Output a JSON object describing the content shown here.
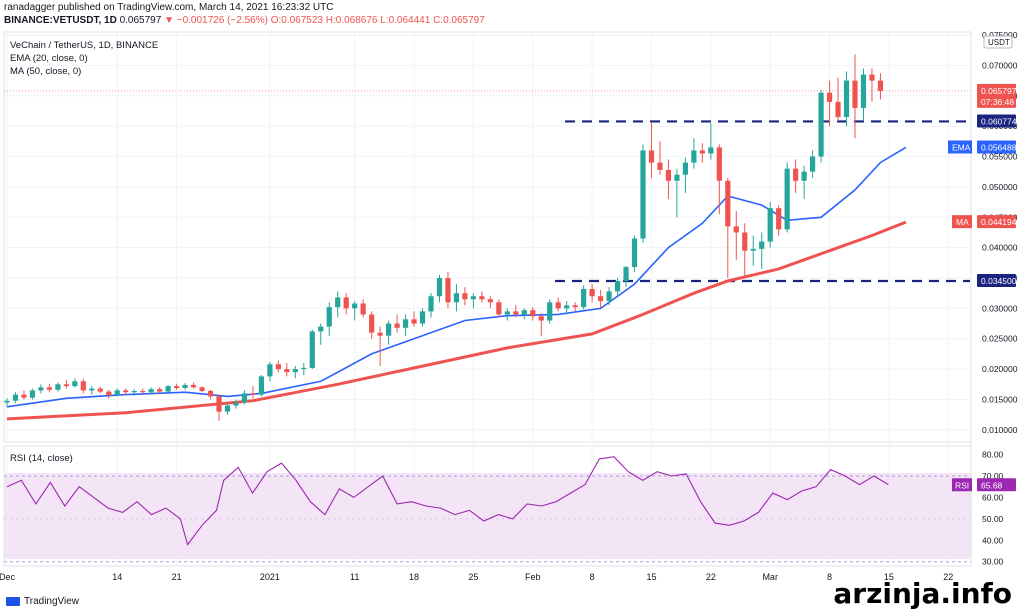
{
  "header": {
    "publisher_line": "ranadagger published on TradingView.com, March 14, 2021 16:23:32 UTC",
    "symbol": "BINANCE:VETUSDT, 1D",
    "last": "0.065797",
    "change": "▼ −0.001726 (−2.56%)",
    "ohlc": "O:0.067523 H:0.068676 L:0.064441 C:0.065797"
  },
  "legend": {
    "title": "VeChain / TetherUS, 1D, BINANCE",
    "ema": "EMA (20, close, 0)",
    "ma": "MA (50, close, 0)",
    "rsi": "RSI (14, close)"
  },
  "badges": {
    "currency": "USDT",
    "price": "0.065797",
    "countdown": "07:36:48",
    "resistance": "0.060774",
    "support": "0.034500",
    "ema_label": "EMA",
    "ema_value": "0.056488",
    "ma_label": "MA",
    "ma_value": "0.044194",
    "rsi_label": "RSI",
    "rsi_value": "65.68"
  },
  "footer": {
    "logo": "TradingView",
    "watermark": "arzinja.info"
  },
  "colors": {
    "up": "#26a69a",
    "down": "#ef5350",
    "ema": "#2962ff",
    "ma": "#ef5350",
    "rsi": "#9c27b0",
    "level": "#1a237e",
    "rsi_band": "#f3e5f5"
  },
  "chart_data": {
    "type": "candlestick",
    "price_axis": {
      "min": 0.008,
      "max": 0.0755,
      "ticks": [
        "0.075000",
        "0.070000",
        "0.065000",
        "0.060000",
        "0.055000",
        "0.050000",
        "0.045000",
        "0.040000",
        "0.035000",
        "0.030000",
        "0.025000",
        "0.020000",
        "0.015000",
        "0.010000"
      ]
    },
    "rsi_axis": {
      "min": 28,
      "max": 84,
      "ticks": [
        "80.00",
        "70.00",
        "60.00",
        "50.00",
        "40.00",
        "30.00"
      ]
    },
    "x_labels": [
      "Dec",
      "14",
      "21",
      "2021",
      "11",
      "18",
      "25",
      "Feb",
      "8",
      "15",
      "22",
      "Mar",
      "8",
      "15",
      "22"
    ],
    "x_label_days": [
      1,
      14,
      21,
      32,
      42,
      49,
      56,
      63,
      70,
      77,
      84,
      91,
      98,
      105,
      112
    ],
    "levels": {
      "resistance": 0.060774,
      "support": 0.0345
    },
    "candles": [
      [
        0.0145,
        0.0152,
        0.0138,
        0.0148
      ],
      [
        0.0148,
        0.0162,
        0.0144,
        0.0158
      ],
      [
        0.0158,
        0.0165,
        0.015,
        0.0153
      ],
      [
        0.0153,
        0.0168,
        0.015,
        0.0165
      ],
      [
        0.0165,
        0.0175,
        0.016,
        0.017
      ],
      [
        0.017,
        0.0176,
        0.0162,
        0.0166
      ],
      [
        0.0166,
        0.0178,
        0.0163,
        0.0175
      ],
      [
        0.0175,
        0.0182,
        0.0168,
        0.0172
      ],
      [
        0.0172,
        0.0185,
        0.017,
        0.018
      ],
      [
        0.018,
        0.0184,
        0.016,
        0.0165
      ],
      [
        0.0165,
        0.0172,
        0.0158,
        0.0168
      ],
      [
        0.0168,
        0.0171,
        0.016,
        0.0163
      ],
      [
        0.0163,
        0.0166,
        0.0152,
        0.0157
      ],
      [
        0.0157,
        0.0168,
        0.0155,
        0.0165
      ],
      [
        0.0165,
        0.0168,
        0.0158,
        0.0162
      ],
      [
        0.0162,
        0.0167,
        0.0156,
        0.0164
      ],
      [
        0.0164,
        0.0168,
        0.016,
        0.0162
      ],
      [
        0.0162,
        0.017,
        0.0158,
        0.0167
      ],
      [
        0.0167,
        0.017,
        0.016,
        0.0163
      ],
      [
        0.0163,
        0.0174,
        0.0161,
        0.0172
      ],
      [
        0.0172,
        0.0176,
        0.0166,
        0.0169
      ],
      [
        0.0169,
        0.0177,
        0.0166,
        0.0174
      ],
      [
        0.0174,
        0.0178,
        0.0168,
        0.017
      ],
      [
        0.017,
        0.0172,
        0.0162,
        0.0164
      ],
      [
        0.0164,
        0.0166,
        0.015,
        0.0155
      ],
      [
        0.0155,
        0.0158,
        0.0115,
        0.013
      ],
      [
        0.013,
        0.0145,
        0.0125,
        0.014
      ],
      [
        0.014,
        0.015,
        0.0135,
        0.0145
      ],
      [
        0.0145,
        0.0165,
        0.0142,
        0.016
      ],
      [
        0.016,
        0.0172,
        0.0152,
        0.0158
      ],
      [
        0.0158,
        0.019,
        0.0155,
        0.0188
      ],
      [
        0.0188,
        0.0212,
        0.018,
        0.0208
      ],
      [
        0.0208,
        0.0214,
        0.0195,
        0.02
      ],
      [
        0.02,
        0.021,
        0.0188,
        0.0195
      ],
      [
        0.0195,
        0.0205,
        0.0185,
        0.02
      ],
      [
        0.02,
        0.021,
        0.019,
        0.0202
      ],
      [
        0.0202,
        0.0265,
        0.02,
        0.0262
      ],
      [
        0.0262,
        0.0275,
        0.024,
        0.027
      ],
      [
        0.027,
        0.031,
        0.0255,
        0.0302
      ],
      [
        0.0302,
        0.0328,
        0.0285,
        0.0318
      ],
      [
        0.0318,
        0.0325,
        0.029,
        0.03
      ],
      [
        0.03,
        0.0312,
        0.028,
        0.0308
      ],
      [
        0.0308,
        0.0315,
        0.0285,
        0.029
      ],
      [
        0.029,
        0.0295,
        0.025,
        0.026
      ],
      [
        0.026,
        0.027,
        0.0205,
        0.0255
      ],
      [
        0.0255,
        0.028,
        0.024,
        0.0275
      ],
      [
        0.0275,
        0.029,
        0.026,
        0.0268
      ],
      [
        0.0268,
        0.029,
        0.0255,
        0.0282
      ],
      [
        0.0282,
        0.0295,
        0.027,
        0.0275
      ],
      [
        0.0275,
        0.03,
        0.027,
        0.0295
      ],
      [
        0.0295,
        0.0325,
        0.0285,
        0.032
      ],
      [
        0.032,
        0.0355,
        0.031,
        0.035
      ],
      [
        0.035,
        0.036,
        0.03,
        0.031
      ],
      [
        0.031,
        0.034,
        0.0295,
        0.0325
      ],
      [
        0.0325,
        0.0335,
        0.0305,
        0.0315
      ],
      [
        0.0315,
        0.0325,
        0.03,
        0.032
      ],
      [
        0.032,
        0.0328,
        0.031,
        0.0315
      ],
      [
        0.0315,
        0.032,
        0.03,
        0.031
      ],
      [
        0.031,
        0.0315,
        0.0285,
        0.029
      ],
      [
        0.029,
        0.03,
        0.028,
        0.0295
      ],
      [
        0.0295,
        0.0305,
        0.0285,
        0.029
      ],
      [
        0.029,
        0.03,
        0.0282,
        0.0297
      ],
      [
        0.0297,
        0.0302,
        0.028,
        0.0287
      ],
      [
        0.0287,
        0.0292,
        0.0255,
        0.028
      ],
      [
        0.028,
        0.0315,
        0.0275,
        0.031
      ],
      [
        0.031,
        0.0318,
        0.0295,
        0.03
      ],
      [
        0.03,
        0.0312,
        0.029,
        0.0305
      ],
      [
        0.0305,
        0.031,
        0.0295,
        0.0302
      ],
      [
        0.0302,
        0.0338,
        0.0298,
        0.0332
      ],
      [
        0.0332,
        0.034,
        0.031,
        0.032
      ],
      [
        0.032,
        0.033,
        0.03,
        0.0312
      ],
      [
        0.0312,
        0.0335,
        0.0305,
        0.0328
      ],
      [
        0.0328,
        0.035,
        0.032,
        0.0345
      ],
      [
        0.0345,
        0.037,
        0.0335,
        0.0368
      ],
      [
        0.0368,
        0.042,
        0.036,
        0.0415
      ],
      [
        0.0415,
        0.057,
        0.0408,
        0.056
      ],
      [
        0.056,
        0.0605,
        0.0515,
        0.054
      ],
      [
        0.054,
        0.0575,
        0.052,
        0.0528
      ],
      [
        0.0528,
        0.0545,
        0.048,
        0.051
      ],
      [
        0.051,
        0.053,
        0.045,
        0.052
      ],
      [
        0.052,
        0.0548,
        0.049,
        0.054
      ],
      [
        0.054,
        0.058,
        0.053,
        0.056
      ],
      [
        0.056,
        0.0572,
        0.054,
        0.0555
      ],
      [
        0.0555,
        0.0605,
        0.0545,
        0.0565
      ],
      [
        0.0565,
        0.057,
        0.0455,
        0.051
      ],
      [
        0.051,
        0.0515,
        0.035,
        0.0435
      ],
      [
        0.0435,
        0.046,
        0.038,
        0.0425
      ],
      [
        0.0425,
        0.044,
        0.035,
        0.0395
      ],
      [
        0.0395,
        0.042,
        0.037,
        0.0398
      ],
      [
        0.0398,
        0.0425,
        0.0365,
        0.041
      ],
      [
        0.041,
        0.0475,
        0.04,
        0.0465
      ],
      [
        0.0465,
        0.047,
        0.042,
        0.043
      ],
      [
        0.043,
        0.054,
        0.0425,
        0.053
      ],
      [
        0.053,
        0.0545,
        0.049,
        0.051
      ],
      [
        0.051,
        0.0535,
        0.048,
        0.0525
      ],
      [
        0.0525,
        0.056,
        0.0515,
        0.055
      ],
      [
        0.055,
        0.066,
        0.054,
        0.0655
      ],
      [
        0.0655,
        0.0675,
        0.06,
        0.064
      ],
      [
        0.064,
        0.068,
        0.0608,
        0.0615
      ],
      [
        0.0615,
        0.069,
        0.06,
        0.0675
      ],
      [
        0.0675,
        0.0718,
        0.058,
        0.063
      ],
      [
        0.063,
        0.0695,
        0.061,
        0.0685
      ],
      [
        0.0685,
        0.0695,
        0.064,
        0.0675
      ],
      [
        0.0675,
        0.0687,
        0.0644,
        0.0658
      ]
    ],
    "ema": [
      [
        1,
        0.0138
      ],
      [
        8,
        0.0152
      ],
      [
        15,
        0.0158
      ],
      [
        22,
        0.0162
      ],
      [
        27,
        0.0155
      ],
      [
        31,
        0.016
      ],
      [
        38,
        0.018
      ],
      [
        44,
        0.0225
      ],
      [
        49,
        0.025
      ],
      [
        55,
        0.028
      ],
      [
        60,
        0.0288
      ],
      [
        66,
        0.029
      ],
      [
        71,
        0.03
      ],
      [
        75,
        0.034
      ],
      [
        79,
        0.04
      ],
      [
        83,
        0.044
      ],
      [
        86,
        0.0485
      ],
      [
        90,
        0.047
      ],
      [
        93,
        0.0445
      ],
      [
        97,
        0.045
      ],
      [
        101,
        0.0495
      ],
      [
        104,
        0.054
      ],
      [
        107,
        0.0565
      ]
    ],
    "ma": [
      [
        1,
        0.0118
      ],
      [
        15,
        0.0128
      ],
      [
        30,
        0.0148
      ],
      [
        40,
        0.0175
      ],
      [
        50,
        0.0205
      ],
      [
        60,
        0.0235
      ],
      [
        70,
        0.0258
      ],
      [
        76,
        0.029
      ],
      [
        82,
        0.0325
      ],
      [
        86,
        0.0345
      ],
      [
        92,
        0.0365
      ],
      [
        98,
        0.0395
      ],
      [
        103,
        0.042
      ],
      [
        107,
        0.0442
      ]
    ],
    "rsi": [
      [
        1,
        65
      ],
      [
        3,
        68
      ],
      [
        5,
        57
      ],
      [
        7,
        67
      ],
      [
        9,
        56
      ],
      [
        11,
        65
      ],
      [
        13,
        60
      ],
      [
        15,
        55
      ],
      [
        17,
        53
      ],
      [
        19,
        58
      ],
      [
        21,
        52
      ],
      [
        23,
        55
      ],
      [
        25,
        50
      ],
      [
        26,
        38
      ],
      [
        28,
        47
      ],
      [
        30,
        54
      ],
      [
        31,
        68
      ],
      [
        33,
        74
      ],
      [
        35,
        62
      ],
      [
        37,
        72
      ],
      [
        39,
        76
      ],
      [
        41,
        68
      ],
      [
        43,
        58
      ],
      [
        45,
        52
      ],
      [
        47,
        64
      ],
      [
        49,
        60
      ],
      [
        51,
        65
      ],
      [
        53,
        70
      ],
      [
        55,
        57
      ],
      [
        57,
        58
      ],
      [
        59,
        56
      ],
      [
        61,
        55
      ],
      [
        63,
        52
      ],
      [
        65,
        54
      ],
      [
        67,
        49
      ],
      [
        69,
        52
      ],
      [
        71,
        50
      ],
      [
        73,
        57
      ],
      [
        75,
        56
      ],
      [
        77,
        58
      ],
      [
        79,
        62
      ],
      [
        81,
        66
      ],
      [
        83,
        78
      ],
      [
        85,
        79
      ],
      [
        87,
        72
      ],
      [
        89,
        68
      ],
      [
        91,
        72
      ],
      [
        93,
        70
      ],
      [
        95,
        71
      ],
      [
        97,
        58
      ],
      [
        99,
        48
      ],
      [
        101,
        47
      ],
      [
        103,
        49
      ],
      [
        105,
        53
      ],
      [
        107,
        62
      ],
      [
        109,
        59
      ],
      [
        111,
        63
      ],
      [
        113,
        65
      ],
      [
        115,
        73
      ],
      [
        117,
        70
      ],
      [
        119,
        66
      ],
      [
        121,
        70
      ],
      [
        123,
        66
      ]
    ]
  }
}
